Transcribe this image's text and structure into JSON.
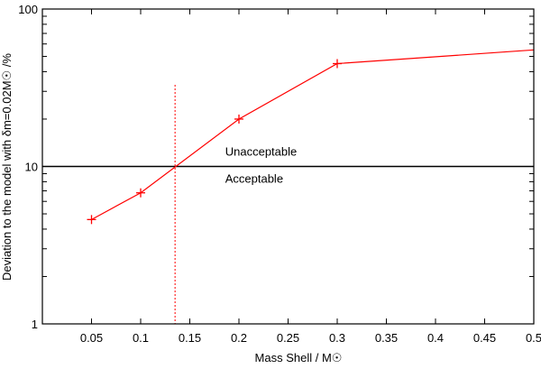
{
  "chart_data": {
    "type": "line",
    "xlabel": "Mass Shell / M☉",
    "ylabel": "Deviation to the model with δm=0.02M☉ /%",
    "xlim": [
      0.0,
      0.5
    ],
    "ylim": [
      1,
      100
    ],
    "yscale": "log",
    "x_ticks": [
      "0.05",
      "0.1",
      "0.15",
      "0.2",
      "0.25",
      "0.3",
      "0.35",
      "0.4",
      "0.45",
      "0.5"
    ],
    "y_ticks": [
      "1",
      "10",
      "100"
    ],
    "grid": false,
    "series": [
      {
        "color": "#ff0000",
        "marker": "plus",
        "points": [
          {
            "x": 0.05,
            "y": 4.6
          },
          {
            "x": 0.1,
            "y": 6.8
          },
          {
            "x": 0.2,
            "y": 20.0
          },
          {
            "x": 0.3,
            "y": 45.0
          }
        ],
        "extends_to": {
          "x": 0.5,
          "y": 55.0
        }
      }
    ],
    "threshold": {
      "y": 10
    },
    "vertical_marker": {
      "x": 0.135,
      "y_top": 33,
      "color": "#ff0000",
      "style": "dotted"
    },
    "annotations": [
      {
        "text": "Unacceptable",
        "x": 0.186,
        "y": 11.7
      },
      {
        "text": "Acceptable",
        "x": 0.186,
        "y": 7.9
      }
    ]
  }
}
